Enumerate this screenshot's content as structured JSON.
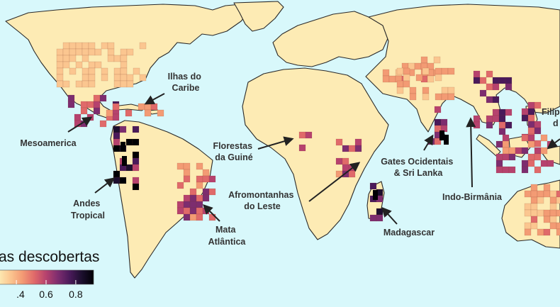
{
  "colors": {
    "ocean": "#d8f8fb",
    "land_base": "#fdebb4",
    "coast": "#2a2a2a",
    "arrow": "#222222",
    "label": "#333333"
  },
  "legend": {
    "title": "as descobertas",
    "ticks": [
      {
        "value": 0.4,
        "label": ".4"
      },
      {
        "value": 0.6,
        "label": "0.6"
      },
      {
        "value": 0.8,
        "label": "0.8"
      }
    ],
    "colormap": "magma-reversed",
    "stops": [
      "#fdebb4",
      "#fbc690",
      "#f39b74",
      "#e06a6a",
      "#b6426e",
      "#7d2d6f",
      "#4a1a5a",
      "#1c0f2e",
      "#000004"
    ]
  },
  "hotspots": [
    {
      "id": "ilhas-caribe",
      "lines": [
        "Ilhas do",
        "Caribe"
      ]
    },
    {
      "id": "mesoamerica",
      "lines": [
        "Mesoamerica"
      ]
    },
    {
      "id": "andes",
      "lines": [
        "Andes",
        "Tropical"
      ]
    },
    {
      "id": "mata-atlantica",
      "lines": [
        "Mata",
        "Atlântica"
      ]
    },
    {
      "id": "guine",
      "lines": [
        "Florestas",
        "da Guiné"
      ]
    },
    {
      "id": "afromontanhas",
      "lines": [
        "Afromontanhas",
        "do Leste"
      ]
    },
    {
      "id": "madagascar",
      "lines": [
        "Madagascar"
      ]
    },
    {
      "id": "gates",
      "lines": [
        "Gates Ocidentais",
        "& Sri Lanka"
      ]
    },
    {
      "id": "indo-birmania",
      "lines": [
        "Indo-Birmânia"
      ]
    },
    {
      "id": "filipinas",
      "lines": [
        "Filip",
        "d"
      ]
    }
  ]
}
